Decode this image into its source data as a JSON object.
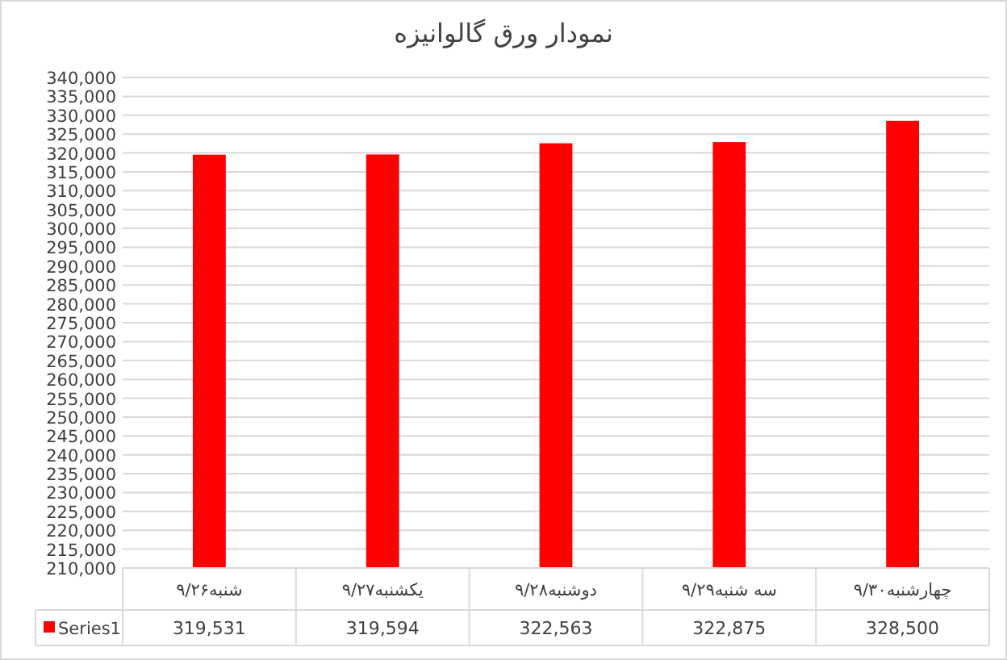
{
  "chart_data": {
    "type": "bar",
    "title": "نمودار ورق گالوانیزه",
    "categories": [
      "شنبه۹/۲۶",
      "یکشنبه۹/۲۷",
      "دوشنبه۹/۲۸",
      "سه شنبه۹/۲۹",
      "چهارشنبه۹/۳۰"
    ],
    "series": [
      {
        "name": "Series1",
        "color": "#ff0000",
        "values": [
          319531,
          319594,
          322563,
          322875,
          328500
        ],
        "value_labels": [
          "319,531",
          "319,594",
          "322,563",
          "322,875",
          "328,500"
        ]
      }
    ],
    "ylim": [
      210000,
      340000
    ],
    "yticks": [
      {
        "value": 210000,
        "label": "210,000"
      },
      {
        "value": 215000,
        "label": "215,000"
      },
      {
        "value": 220000,
        "label": "220,000"
      },
      {
        "value": 225000,
        "label": "225,000"
      },
      {
        "value": 230000,
        "label": "230,000"
      },
      {
        "value": 235000,
        "label": "235,000"
      },
      {
        "value": 240000,
        "label": "240,000"
      },
      {
        "value": 245000,
        "label": "245,000"
      },
      {
        "value": 250000,
        "label": "250,000"
      },
      {
        "value": 255000,
        "label": "255,000"
      },
      {
        "value": 260000,
        "label": "260,000"
      },
      {
        "value": 265000,
        "label": "265,000"
      },
      {
        "value": 270000,
        "label": "270,000"
      },
      {
        "value": 275000,
        "label": "275,000"
      },
      {
        "value": 280000,
        "label": "280,000"
      },
      {
        "value": 285000,
        "label": "285,000"
      },
      {
        "value": 290000,
        "label": "290,000"
      },
      {
        "value": 295000,
        "label": "295,000"
      },
      {
        "value": 300000,
        "label": "300,000"
      },
      {
        "value": 305000,
        "label": "305,000"
      },
      {
        "value": 310000,
        "label": "310,000"
      },
      {
        "value": 315000,
        "label": "315,000"
      },
      {
        "value": 320000,
        "label": "320,000"
      },
      {
        "value": 325000,
        "label": "325,000"
      },
      {
        "value": 330000,
        "label": "330,000"
      },
      {
        "value": 335000,
        "label": "335,000"
      },
      {
        "value": 340000,
        "label": "340,000"
      }
    ],
    "grid": "y",
    "legend": "bottom"
  }
}
